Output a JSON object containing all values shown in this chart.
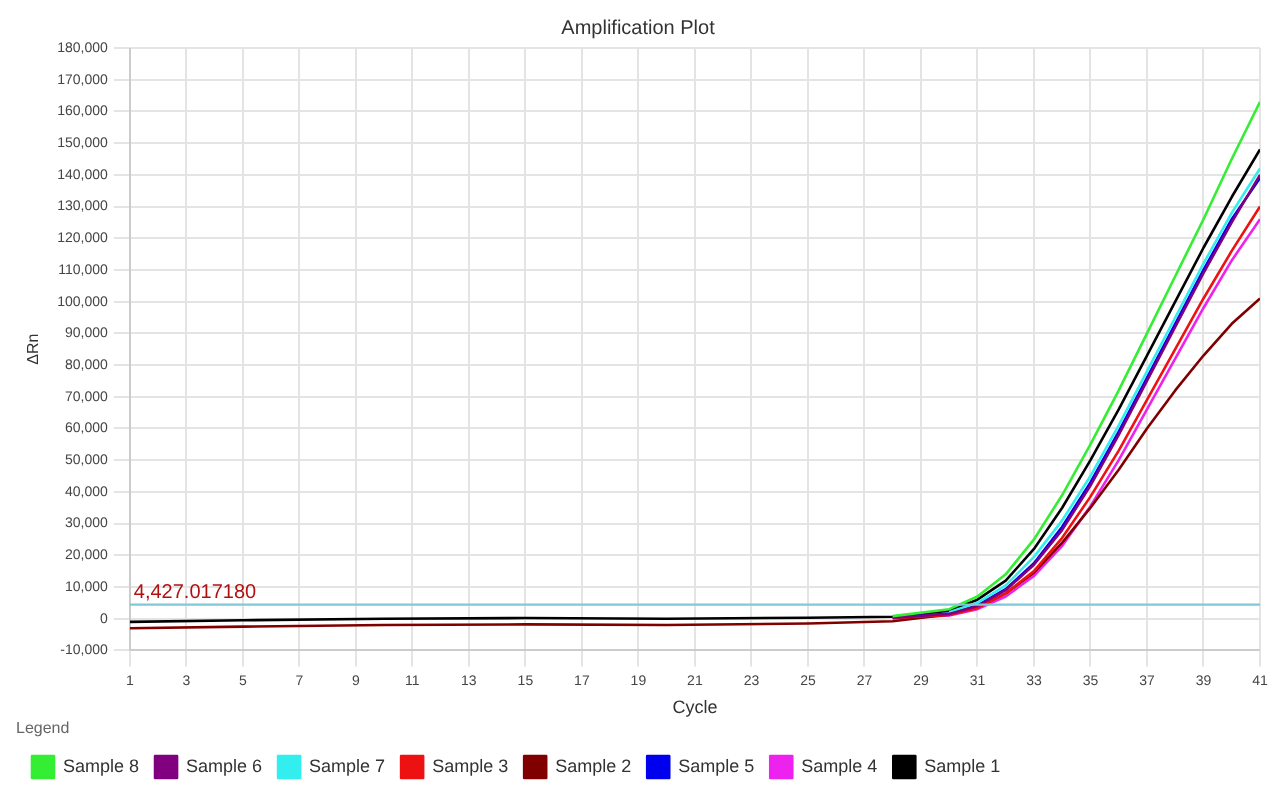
{
  "chart_data": {
    "type": "line",
    "title": "Amplification Plot",
    "xlabel": "Cycle",
    "ylabel": "ΔRn",
    "legend_title": "Legend",
    "legend": "bottom",
    "grid": true,
    "marker": "none",
    "line_style": "solid",
    "x": [
      1,
      5,
      10,
      15,
      20,
      25,
      28,
      30,
      31,
      32,
      33,
      34,
      35,
      36,
      37,
      38,
      39,
      40,
      41
    ],
    "xlim": [
      1,
      41
    ],
    "xticks": [
      1,
      3,
      5,
      7,
      9,
      11,
      13,
      15,
      17,
      19,
      21,
      23,
      25,
      27,
      29,
      31,
      33,
      35,
      37,
      39,
      41
    ],
    "ylim": [
      -10000,
      180000
    ],
    "yticks": [
      {
        "value": -10000,
        "label": "-10,000"
      },
      {
        "value": 0,
        "label": "0"
      },
      {
        "value": 10000,
        "label": "10,000"
      },
      {
        "value": 20000,
        "label": "20,000"
      },
      {
        "value": 30000,
        "label": "30,000"
      },
      {
        "value": 40000,
        "label": "40,000"
      },
      {
        "value": 50000,
        "label": "50,000"
      },
      {
        "value": 60000,
        "label": "60,000"
      },
      {
        "value": 70000,
        "label": "70,000"
      },
      {
        "value": 80000,
        "label": "80,000"
      },
      {
        "value": 90000,
        "label": "90,000"
      },
      {
        "value": 100000,
        "label": "100,000"
      },
      {
        "value": 110000,
        "label": "110,000"
      },
      {
        "value": 120000,
        "label": "120,000"
      },
      {
        "value": 130000,
        "label": "130,000"
      },
      {
        "value": 140000,
        "label": "140,000"
      },
      {
        "value": 150000,
        "label": "150,000"
      },
      {
        "value": 160000,
        "label": "160,000"
      },
      {
        "value": 170000,
        "label": "170,000"
      },
      {
        "value": 180000,
        "label": "180,000"
      }
    ],
    "ref_lines": [
      {
        "axis": "y",
        "value": 4427.01718,
        "label": "4,427.017180",
        "color": "#7fc8d8"
      }
    ],
    "series": [
      {
        "name": "Sample 8",
        "color": "#33ee33",
        "values": [
          null,
          null,
          null,
          null,
          null,
          null,
          800,
          3000,
          7000,
          14000,
          25000,
          39000,
          55000,
          72000,
          90000,
          108000,
          126000,
          145000,
          163000
        ]
      },
      {
        "name": "Sample 6",
        "color": "#800080",
        "values": [
          null,
          null,
          null,
          null,
          null,
          null,
          300,
          1500,
          4000,
          9000,
          17000,
          28000,
          42000,
          58000,
          75000,
          92000,
          109000,
          125000,
          140000
        ]
      },
      {
        "name": "Sample 7",
        "color": "#33eeee",
        "values": [
          null,
          null,
          null,
          null,
          null,
          null,
          null,
          2000,
          5000,
          10500,
          19500,
          31000,
          45000,
          61000,
          78000,
          95000,
          112000,
          128000,
          142000
        ]
      },
      {
        "name": "Sample 3",
        "color": "#ee1111",
        "values": [
          null,
          null,
          null,
          null,
          null,
          null,
          200,
          1200,
          3400,
          8000,
          15000,
          25500,
          38500,
          53000,
          69000,
          85000,
          101000,
          116000,
          130000
        ]
      },
      {
        "name": "Sample 2",
        "color": "#800000",
        "values": [
          -3000,
          -2500,
          -2000,
          -1800,
          -2000,
          -1500,
          -800,
          1300,
          3500,
          8000,
          14500,
          24000,
          35000,
          47000,
          60000,
          72000,
          83000,
          93000,
          101000
        ]
      },
      {
        "name": "Sample 5",
        "color": "#0000ee",
        "values": [
          null,
          null,
          null,
          null,
          null,
          null,
          300,
          1600,
          4200,
          9300,
          17500,
          29000,
          43000,
          59000,
          76000,
          93000,
          110000,
          126000,
          139000
        ]
      },
      {
        "name": "Sample 4",
        "color": "#ee22ee",
        "values": [
          null,
          null,
          null,
          null,
          null,
          null,
          100,
          1000,
          3000,
          7000,
          13500,
          23000,
          35500,
          50000,
          66000,
          82000,
          98000,
          113000,
          126000
        ]
      },
      {
        "name": "Sample 1",
        "color": "#000000",
        "values": [
          -1000,
          -500,
          0,
          200,
          0,
          300,
          600,
          2500,
          6000,
          12000,
          22000,
          35000,
          50000,
          66000,
          83000,
          100000,
          117000,
          133000,
          148000
        ]
      }
    ]
  }
}
